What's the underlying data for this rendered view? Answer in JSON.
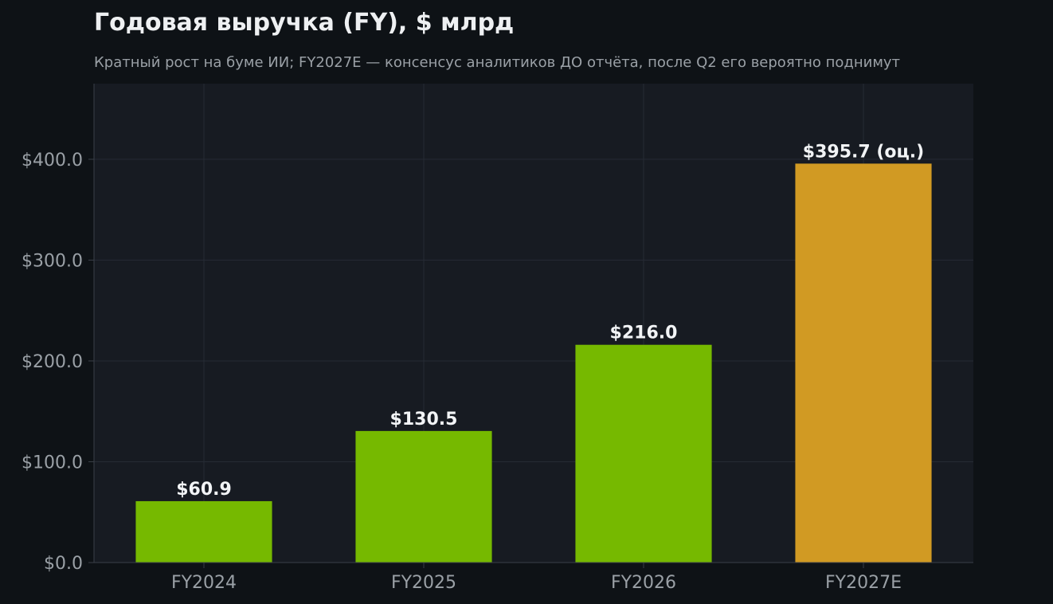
{
  "colors": {
    "page_background": "#0e1216",
    "plot_background": "#171b22",
    "grid": "#262b34",
    "axis": "#3a3f48",
    "title_text": "#eef0f2",
    "subtitle_text": "#9aa0a6",
    "tick_text": "#9aa0a6",
    "label_text": "#f2f4f6",
    "actual_bar": "#76b900",
    "estimate_bar": "#d19a23"
  },
  "chart_data": {
    "type": "bar",
    "title": "Годовая выручка (FY), $ млрд",
    "subtitle": "Кратный рост на буме ИИ; FY2027E — консенсус аналитиков ДО отчёта, после Q2 его вероятно поднимут",
    "xlabel": "",
    "ylabel": "",
    "categories": [
      "FY2024",
      "FY2025",
      "FY2026",
      "FY2027E"
    ],
    "values": [
      60.9,
      130.5,
      216.0,
      395.7
    ],
    "value_labels": [
      "$60.9",
      "$130.5",
      "$216.0",
      "$395.7 (оц.)"
    ],
    "estimate": [
      false,
      false,
      false,
      true
    ],
    "ylim": [
      0,
      475
    ],
    "yticks": [
      0,
      100,
      200,
      300,
      400
    ],
    "ytick_labels": [
      "$0.0",
      "$100.0",
      "$200.0",
      "$300.0",
      "$400.0"
    ],
    "grid": true,
    "legend": "none"
  }
}
